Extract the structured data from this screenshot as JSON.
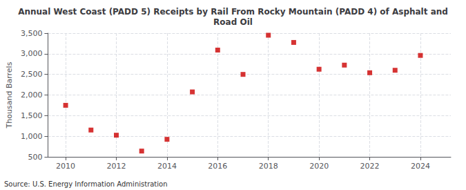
{
  "chart_data": {
    "type": "scatter",
    "title": "Annual West Coast (PADD 5) Receipts by Rail From Rocky Mountain (PADD 4) of Asphalt and\nRoad Oil",
    "ylabel": "Thousand Barrels",
    "annotation": "Source: U.S. Energy Information Administration",
    "x": [
      2010,
      2011,
      2012,
      2013,
      2014,
      2015,
      2016,
      2017,
      2018,
      2019,
      2020,
      2021,
      2022,
      2023,
      2024
    ],
    "values": [
      1750,
      1150,
      1025,
      640,
      925,
      2075,
      3090,
      2500,
      3450,
      3275,
      2625,
      2725,
      2540,
      2600,
      2960
    ],
    "color": "#cc0000",
    "marker": "square",
    "xlim": [
      2009.3,
      2025.2
    ],
    "xticks": [
      2010,
      2012,
      2014,
      2016,
      2018,
      2020,
      2022,
      2024
    ],
    "ylim": [
      500,
      3500
    ],
    "yticks": [
      500,
      {
        "value": 1000,
        "label": "1,000"
      },
      {
        "value": 1500,
        "label": "1,500"
      },
      {
        "value": 2000,
        "label": "2,000"
      },
      {
        "value": 2500,
        "label": "2,500"
      },
      {
        "value": 3000,
        "label": "3,000"
      },
      {
        "value": 3500,
        "label": "3,500"
      }
    ],
    "grid": true
  }
}
